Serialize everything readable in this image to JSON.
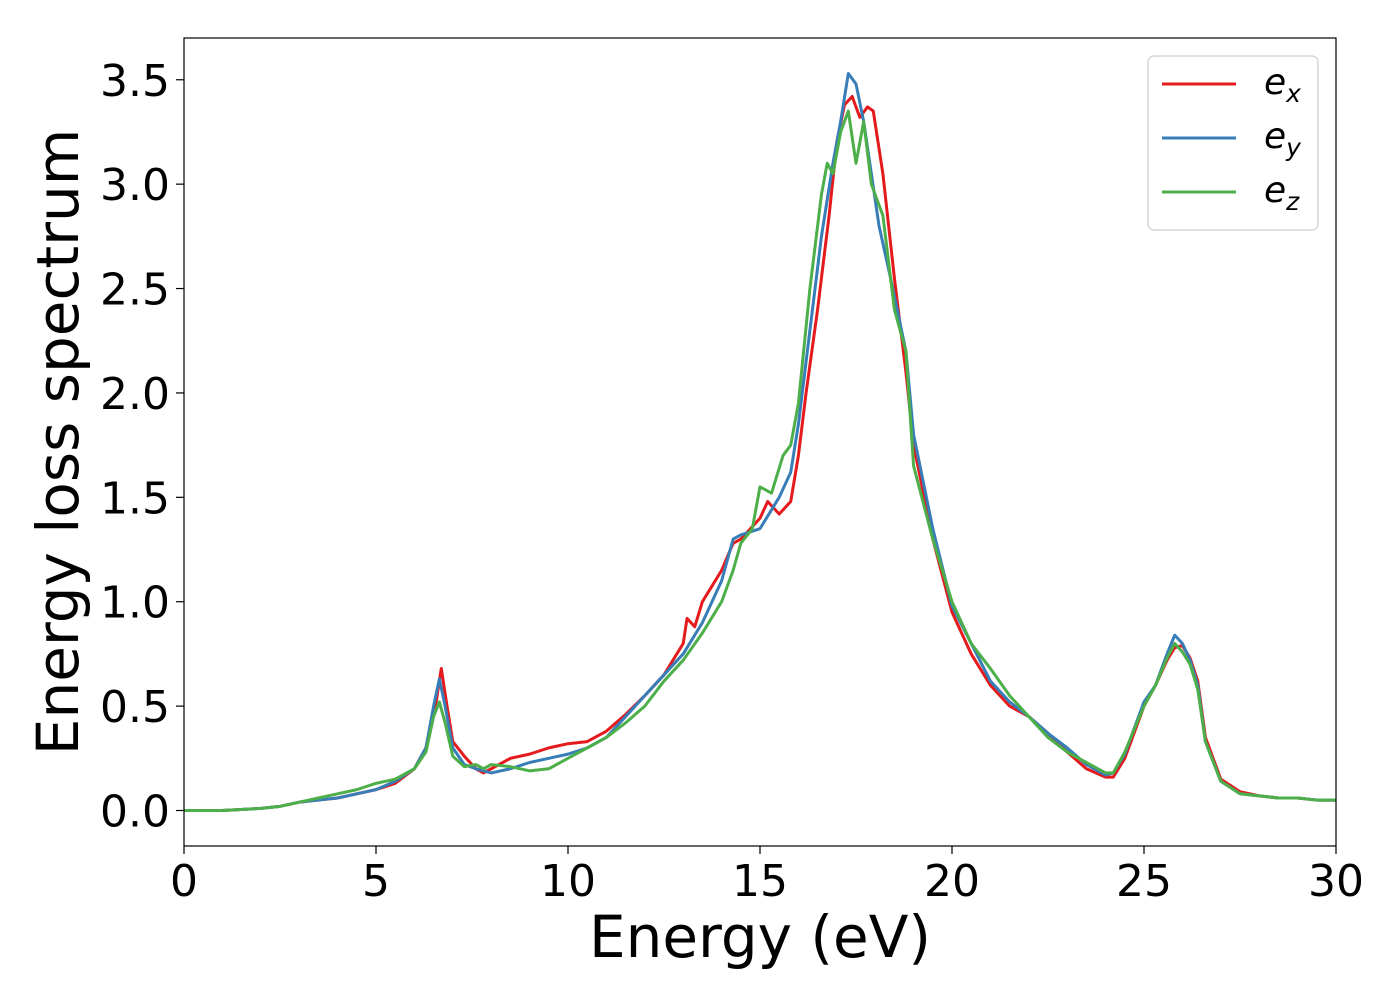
{
  "chart_data": {
    "type": "line",
    "title": "",
    "xlabel": "Energy (eV)",
    "ylabel": "Energy loss spectrum",
    "xlim": [
      0,
      30
    ],
    "ylim": [
      -0.17,
      3.7
    ],
    "xticks": [
      0,
      5,
      10,
      15,
      20,
      25,
      30
    ],
    "yticks": [
      0.0,
      0.5,
      1.0,
      1.5,
      2.0,
      2.5,
      3.0,
      3.5
    ],
    "xtick_labels": [
      "0",
      "5",
      "10",
      "15",
      "20",
      "25",
      "30"
    ],
    "ytick_labels": [
      "0.0",
      "0.5",
      "1.0",
      "1.5",
      "2.0",
      "2.5",
      "3.0",
      "3.5"
    ],
    "grid": false,
    "legend_position": "top-right",
    "series": [
      {
        "name": "e_x",
        "legend_base": "e",
        "legend_sub": "x",
        "color": "#e41a1c",
        "x": [
          0,
          1,
          2,
          2.5,
          3,
          3.5,
          4,
          4.5,
          5,
          5.5,
          6,
          6.3,
          6.55,
          6.7,
          6.85,
          7.0,
          7.3,
          7.6,
          7.8,
          8.0,
          8.5,
          9,
          9.5,
          10,
          10.5,
          11,
          11.5,
          12,
          12.5,
          13,
          13.1,
          13.3,
          13.5,
          14,
          14.3,
          14.5,
          15,
          15.2,
          15.5,
          15.8,
          16,
          16.2,
          16.5,
          16.8,
          17,
          17.2,
          17.4,
          17.6,
          17.8,
          17.95,
          18.2,
          18.5,
          18.8,
          19,
          19.5,
          20,
          20.5,
          21,
          21.5,
          22,
          22.5,
          23,
          23.5,
          24,
          24.2,
          24.5,
          25,
          25.3,
          25.6,
          25.8,
          26,
          26.2,
          26.4,
          26.6,
          27,
          27.5,
          28,
          28.5,
          29,
          29.5,
          30
        ],
        "y": [
          0,
          0,
          0.01,
          0.02,
          0.04,
          0.05,
          0.06,
          0.08,
          0.1,
          0.13,
          0.2,
          0.3,
          0.5,
          0.68,
          0.5,
          0.33,
          0.26,
          0.2,
          0.18,
          0.2,
          0.25,
          0.27,
          0.3,
          0.32,
          0.33,
          0.38,
          0.46,
          0.55,
          0.65,
          0.8,
          0.92,
          0.88,
          1.0,
          1.15,
          1.28,
          1.3,
          1.4,
          1.48,
          1.42,
          1.48,
          1.7,
          2.0,
          2.4,
          2.85,
          3.2,
          3.38,
          3.42,
          3.32,
          3.37,
          3.35,
          3.05,
          2.55,
          2.1,
          1.75,
          1.3,
          0.95,
          0.75,
          0.6,
          0.5,
          0.45,
          0.37,
          0.28,
          0.2,
          0.16,
          0.16,
          0.25,
          0.5,
          0.6,
          0.72,
          0.78,
          0.79,
          0.73,
          0.62,
          0.35,
          0.15,
          0.09,
          0.07,
          0.06,
          0.06,
          0.05,
          0.05
        ]
      },
      {
        "name": "e_y",
        "legend_base": "e",
        "legend_sub": "y",
        "color": "#377eb8",
        "x": [
          0,
          1,
          2,
          2.5,
          3,
          3.5,
          4,
          4.5,
          5,
          5.5,
          6,
          6.3,
          6.5,
          6.65,
          6.8,
          7.0,
          7.3,
          7.6,
          7.8,
          8.0,
          8.5,
          9,
          9.5,
          10,
          10.5,
          11,
          11.5,
          12,
          12.5,
          13,
          13.5,
          14,
          14.3,
          14.5,
          15,
          15.5,
          15.8,
          16,
          16.3,
          16.6,
          16.9,
          17.1,
          17.3,
          17.5,
          17.7,
          17.9,
          18.1,
          18.4,
          18.8,
          19,
          19.5,
          20,
          20.5,
          21,
          21.5,
          22,
          22.5,
          23,
          23.5,
          24,
          24.2,
          24.5,
          25,
          25.3,
          25.6,
          25.8,
          26,
          26.2,
          26.4,
          26.6,
          27,
          27.5,
          28,
          28.5,
          29,
          29.5,
          30
        ],
        "y": [
          0,
          0,
          0.01,
          0.02,
          0.04,
          0.05,
          0.06,
          0.08,
          0.1,
          0.14,
          0.2,
          0.3,
          0.5,
          0.63,
          0.5,
          0.3,
          0.22,
          0.2,
          0.19,
          0.18,
          0.2,
          0.23,
          0.25,
          0.27,
          0.3,
          0.35,
          0.45,
          0.55,
          0.65,
          0.75,
          0.9,
          1.1,
          1.3,
          1.32,
          1.35,
          1.5,
          1.62,
          1.85,
          2.3,
          2.75,
          3.1,
          3.3,
          3.53,
          3.48,
          3.3,
          3.05,
          2.8,
          2.55,
          2.2,
          1.8,
          1.35,
          0.98,
          0.8,
          0.62,
          0.52,
          0.45,
          0.37,
          0.3,
          0.22,
          0.17,
          0.18,
          0.27,
          0.52,
          0.6,
          0.75,
          0.84,
          0.8,
          0.72,
          0.6,
          0.33,
          0.14,
          0.08,
          0.07,
          0.06,
          0.06,
          0.05,
          0.05
        ]
      },
      {
        "name": "e_z",
        "legend_base": "e",
        "legend_sub": "z",
        "color": "#4daf4a",
        "x": [
          0,
          1,
          2,
          2.5,
          3,
          3.5,
          4,
          4.5,
          5,
          5.5,
          6,
          6.3,
          6.5,
          6.65,
          6.8,
          7.0,
          7.3,
          7.6,
          7.8,
          8.0,
          8.5,
          9,
          9.5,
          10,
          10.5,
          11,
          11.5,
          12,
          12.5,
          13,
          13.5,
          14,
          14.3,
          14.5,
          14.8,
          15,
          15.3,
          15.6,
          15.8,
          16,
          16.3,
          16.6,
          16.75,
          16.9,
          17.1,
          17.3,
          17.5,
          17.7,
          17.9,
          18.2,
          18.5,
          18.8,
          19,
          19.5,
          20,
          20.5,
          21,
          21.5,
          22,
          22.5,
          23,
          23.5,
          24,
          24.2,
          24.5,
          25,
          25.3,
          25.6,
          25.8,
          26,
          26.2,
          26.4,
          26.6,
          27,
          27.5,
          28,
          28.5,
          29,
          29.5,
          30
        ],
        "y": [
          0,
          0,
          0.01,
          0.02,
          0.04,
          0.06,
          0.08,
          0.1,
          0.13,
          0.15,
          0.2,
          0.28,
          0.45,
          0.52,
          0.42,
          0.26,
          0.21,
          0.22,
          0.2,
          0.22,
          0.21,
          0.19,
          0.2,
          0.25,
          0.3,
          0.35,
          0.42,
          0.5,
          0.62,
          0.72,
          0.85,
          1.0,
          1.15,
          1.28,
          1.35,
          1.55,
          1.52,
          1.7,
          1.75,
          1.95,
          2.5,
          2.95,
          3.1,
          3.05,
          3.25,
          3.35,
          3.1,
          3.3,
          3.0,
          2.85,
          2.4,
          2.2,
          1.65,
          1.3,
          1.0,
          0.8,
          0.68,
          0.55,
          0.45,
          0.35,
          0.28,
          0.23,
          0.18,
          0.18,
          0.28,
          0.5,
          0.6,
          0.73,
          0.8,
          0.76,
          0.7,
          0.58,
          0.33,
          0.14,
          0.08,
          0.07,
          0.06,
          0.06,
          0.05,
          0.05
        ]
      }
    ]
  }
}
